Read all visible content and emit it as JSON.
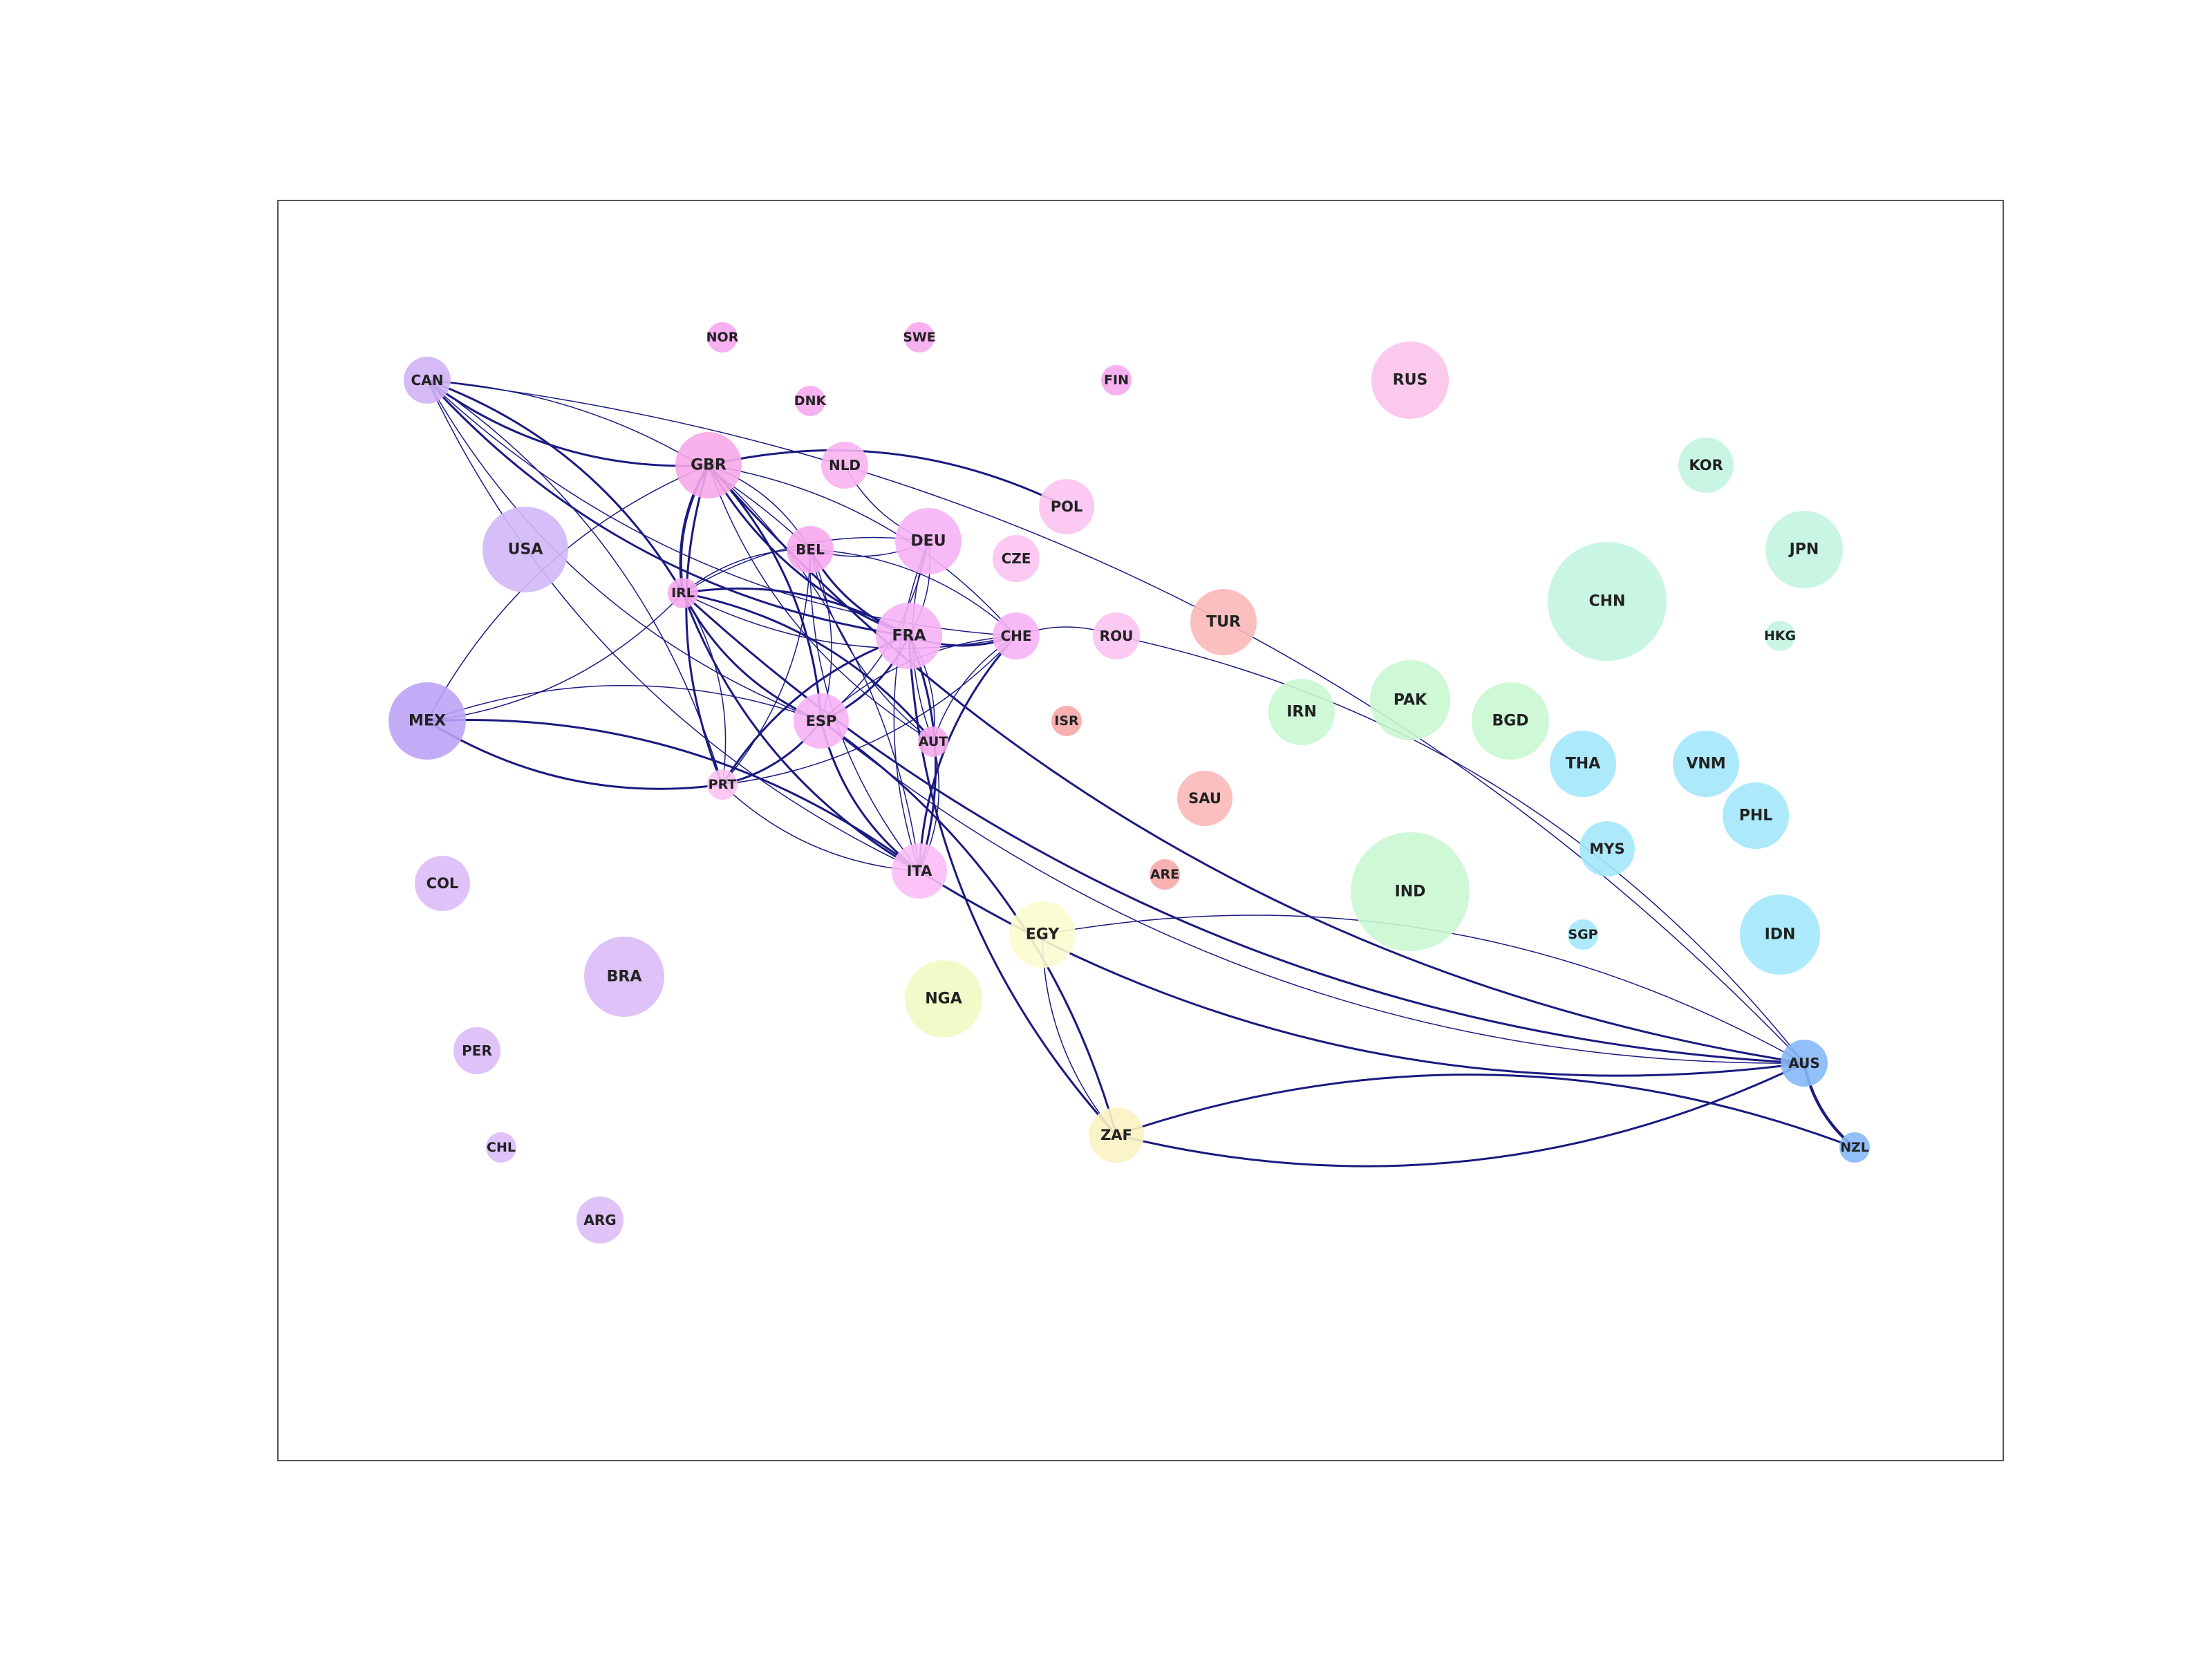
{
  "nodes": [
    {
      "id": "NOR",
      "size": 2,
      "color": "#f7a8ee"
    },
    {
      "id": "SWE",
      "size": 2,
      "color": "#f7a8ee"
    },
    {
      "id": "CAN",
      "size": 3,
      "color": "#d1b3f5"
    },
    {
      "id": "DNK",
      "size": 2,
      "color": "#f7a8ee"
    },
    {
      "id": "FIN",
      "size": 2,
      "color": "#f7a8ee"
    },
    {
      "id": "RUS",
      "size": 6,
      "color": "#fbc3ea"
    },
    {
      "id": "GBR",
      "size": 5,
      "color": "#f7a8e8"
    },
    {
      "id": "NLD",
      "size": 3,
      "color": "#f7b3f0"
    },
    {
      "id": "KOR",
      "size": 4,
      "color": "#c3f5e0"
    },
    {
      "id": "POL",
      "size": 4,
      "color": "#fbc3ef"
    },
    {
      "id": "USA",
      "size": 8,
      "color": "#d1b8f7"
    },
    {
      "id": "BEL",
      "size": 3,
      "color": "#f7a8ee"
    },
    {
      "id": "DEU",
      "size": 5,
      "color": "#f7b3f5"
    },
    {
      "id": "CZE",
      "size": 3,
      "color": "#fbc3f0"
    },
    {
      "id": "JPN",
      "size": 6,
      "color": "#c3f5e0"
    },
    {
      "id": "IRL",
      "size": 2,
      "color": "#f7a8ee"
    },
    {
      "id": "CHN",
      "size": 10,
      "color": "#c3f5e0"
    },
    {
      "id": "FRA",
      "size": 5,
      "color": "#f7b3f5"
    },
    {
      "id": "CHE",
      "size": 3,
      "color": "#f7b3f5"
    },
    {
      "id": "ROU",
      "size": 3,
      "color": "#fbc3ef"
    },
    {
      "id": "TUR",
      "size": 5,
      "color": "#fbb8b8"
    },
    {
      "id": "HKG",
      "size": 2,
      "color": "#c3f5e0"
    },
    {
      "id": "IRN",
      "size": 5,
      "color": "#c9f7d1"
    },
    {
      "id": "PAK",
      "size": 7,
      "color": "#c9f7d1"
    },
    {
      "id": "BGD",
      "size": 6,
      "color": "#c9f7d1"
    },
    {
      "id": "MEX",
      "size": 6,
      "color": "#bba3f7"
    },
    {
      "id": "ESP",
      "size": 4,
      "color": "#f7b3f5"
    },
    {
      "id": "ISR",
      "size": 2,
      "color": "#f7a8a8"
    },
    {
      "id": "THA",
      "size": 5,
      "color": "#a3e8fb"
    },
    {
      "id": "VNM",
      "size": 5,
      "color": "#a3e8fb"
    },
    {
      "id": "AUT",
      "size": 2,
      "color": "#f7a8ee"
    },
    {
      "id": "PRT",
      "size": 2,
      "color": "#fbc3f0"
    },
    {
      "id": "SAU",
      "size": 4,
      "color": "#fbb8b8"
    },
    {
      "id": "PHL",
      "size": 5,
      "color": "#a3e8fb"
    },
    {
      "id": "MYS",
      "size": 4,
      "color": "#a3e8fb"
    },
    {
      "id": "ARE",
      "size": 2,
      "color": "#f7a8a8"
    },
    {
      "id": "ITA",
      "size": 4,
      "color": "#fbbcf7"
    },
    {
      "id": "COL",
      "size": 4,
      "color": "#dbbcf7"
    },
    {
      "id": "IND",
      "size": 10,
      "color": "#c9f7d1"
    },
    {
      "id": "SGP",
      "size": 2,
      "color": "#a3e8fb"
    },
    {
      "id": "IDN",
      "size": 7,
      "color": "#a3e8fb"
    },
    {
      "id": "EGY",
      "size": 5,
      "color": "#fbfbcf"
    },
    {
      "id": "BRA",
      "size": 7,
      "color": "#dbbcf7"
    },
    {
      "id": "NGA",
      "size": 6,
      "color": "#effbc3"
    },
    {
      "id": "PER",
      "size": 3,
      "color": "#dbbcf7"
    },
    {
      "id": "AUS",
      "size": 3,
      "color": "#86b8f7"
    },
    {
      "id": "ZAF",
      "size": 4,
      "color": "#fbf3c3"
    },
    {
      "id": "CHL",
      "size": 2,
      "color": "#dbbcf7"
    },
    {
      "id": "NZL",
      "size": 2,
      "color": "#86b8f7"
    },
    {
      "id": "ARG",
      "size": 3,
      "color": "#dbbcf7"
    }
  ],
  "edge_color": "#1a1a80",
  "edges": [
    {
      "source": "CAN",
      "target": "GBR",
      "weight": 2
    },
    {
      "source": "CAN",
      "target": "IRL",
      "weight": 2
    },
    {
      "source": "CAN",
      "target": "FRA",
      "weight": 2
    },
    {
      "source": "CAN",
      "target": "BEL",
      "weight": 1
    },
    {
      "source": "CAN",
      "target": "ESP",
      "weight": 1
    },
    {
      "source": "CAN",
      "target": "PRT",
      "weight": 1
    },
    {
      "source": "CAN",
      "target": "ITA",
      "weight": 1
    },
    {
      "source": "CAN",
      "target": "AUS",
      "weight": 1
    },
    {
      "source": "CAN",
      "target": "CHE",
      "weight": 1
    },
    {
      "source": "MEX",
      "target": "GBR",
      "weight": 1
    },
    {
      "source": "MEX",
      "target": "IRL",
      "weight": 1
    },
    {
      "source": "MEX",
      "target": "ESP",
      "weight": 1
    },
    {
      "source": "MEX",
      "target": "PRT",
      "weight": 2
    },
    {
      "source": "MEX",
      "target": "ITA",
      "weight": 2
    },
    {
      "source": "GBR",
      "target": "IRL",
      "weight": 3
    },
    {
      "source": "GBR",
      "target": "POL",
      "weight": 2
    },
    {
      "source": "GBR",
      "target": "FRA",
      "weight": 2
    },
    {
      "source": "GBR",
      "target": "ESP",
      "weight": 2
    },
    {
      "source": "GBR",
      "target": "PRT",
      "weight": 2
    },
    {
      "source": "GBR",
      "target": "ITA",
      "weight": 1
    },
    {
      "source": "GBR",
      "target": "AUT",
      "weight": 1
    },
    {
      "source": "GBR",
      "target": "CHE",
      "weight": 1
    },
    {
      "source": "GBR",
      "target": "AUS",
      "weight": 2
    },
    {
      "source": "GBR",
      "target": "BEL",
      "weight": 1
    },
    {
      "source": "NLD",
      "target": "DEU",
      "weight": 1
    },
    {
      "source": "IRL",
      "target": "FRA",
      "weight": 2
    },
    {
      "source": "IRL",
      "target": "ESP",
      "weight": 2
    },
    {
      "source": "IRL",
      "target": "PRT",
      "weight": 1
    },
    {
      "source": "IRL",
      "target": "ITA",
      "weight": 2
    },
    {
      "source": "IRL",
      "target": "AUT",
      "weight": 2
    },
    {
      "source": "IRL",
      "target": "AUS",
      "weight": 2
    },
    {
      "source": "IRL",
      "target": "BEL",
      "weight": 1
    },
    {
      "source": "IRL",
      "target": "CHE",
      "weight": 1
    },
    {
      "source": "IRL",
      "target": "DEU",
      "weight": 1
    },
    {
      "source": "BEL",
      "target": "FRA",
      "weight": 2
    },
    {
      "source": "BEL",
      "target": "ESP",
      "weight": 1
    },
    {
      "source": "BEL",
      "target": "ITA",
      "weight": 1
    },
    {
      "source": "BEL",
      "target": "PRT",
      "weight": 1
    },
    {
      "source": "BEL",
      "target": "AUT",
      "weight": 1
    },
    {
      "source": "BEL",
      "target": "CHE",
      "weight": 1
    },
    {
      "source": "BEL",
      "target": "DEU",
      "weight": 1
    },
    {
      "source": "DEU",
      "target": "FRA",
      "weight": 1
    },
    {
      "source": "DEU",
      "target": "ITA",
      "weight": 1
    },
    {
      "source": "DEU",
      "target": "ESP",
      "weight": 1
    },
    {
      "source": "DEU",
      "target": "AUT",
      "weight": 1
    },
    {
      "source": "FRA",
      "target": "ESP",
      "weight": 2
    },
    {
      "source": "FRA",
      "target": "PRT",
      "weight": 2
    },
    {
      "source": "FRA",
      "target": "ITA",
      "weight": 2
    },
    {
      "source": "FRA",
      "target": "CHE",
      "weight": 2
    },
    {
      "source": "FRA",
      "target": "AUT",
      "weight": 1
    },
    {
      "source": "FRA",
      "target": "ZAF",
      "weight": 2
    },
    {
      "source": "ESP",
      "target": "PRT",
      "weight": 2
    },
    {
      "source": "ESP",
      "target": "ITA",
      "weight": 2
    },
    {
      "source": "ESP",
      "target": "CHE",
      "weight": 1
    },
    {
      "source": "ESP",
      "target": "AUS",
      "weight": 1
    },
    {
      "source": "ESP",
      "target": "ZAF",
      "weight": 2
    },
    {
      "source": "CHE",
      "target": "ITA",
      "weight": 2
    },
    {
      "source": "CHE",
      "target": "PRT",
      "weight": 1
    },
    {
      "source": "CHE",
      "target": "AUT",
      "weight": 1
    },
    {
      "source": "CHE",
      "target": "ROU",
      "weight": 1
    },
    {
      "source": "PRT",
      "target": "ITA",
      "weight": 1
    },
    {
      "source": "AUT",
      "target": "ITA",
      "weight": 1
    },
    {
      "source": "ITA",
      "target": "AUS",
      "weight": 2
    },
    {
      "source": "ROU",
      "target": "AUS",
      "weight": 1
    },
    {
      "source": "EGY",
      "target": "ZAF",
      "weight": 1
    },
    {
      "source": "EGY",
      "target": "AUS",
      "weight": 1
    },
    {
      "source": "ZAF",
      "target": "AUS",
      "weight": 2
    },
    {
      "source": "ZAF",
      "target": "NZL",
      "weight": 2
    },
    {
      "source": "AUS",
      "target": "NZL",
      "weight": 3
    }
  ]
}
